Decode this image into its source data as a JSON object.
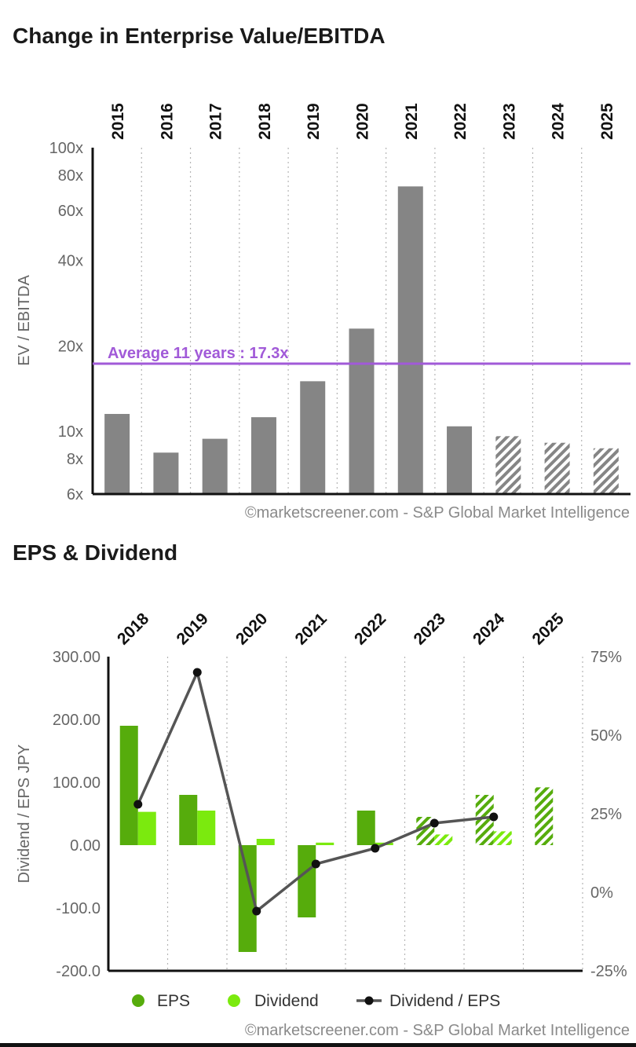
{
  "chart_data": [
    {
      "type": "bar",
      "title": "Change in Enterprise Value/EBITDA",
      "ylabel": "EV / EBITDA",
      "yscale": "log",
      "ylim": [
        6,
        100
      ],
      "y_ticks": [
        {
          "value": 100,
          "label": "100x"
        },
        {
          "value": 80,
          "label": "80x"
        },
        {
          "value": 60,
          "label": "60x"
        },
        {
          "value": 40,
          "label": "40x"
        },
        {
          "value": 20,
          "label": "20x"
        },
        {
          "value": 10,
          "label": "10x"
        },
        {
          "value": 8,
          "label": "8x"
        },
        {
          "value": 6,
          "label": "6x"
        }
      ],
      "categories": [
        "2015",
        "2016",
        "2017",
        "2018",
        "2019",
        "2020",
        "2021",
        "2022",
        "2023",
        "2024",
        "2025"
      ],
      "values": [
        11.5,
        8.4,
        9.4,
        11.2,
        15.0,
        23.0,
        73.0,
        10.4,
        9.6,
        9.1,
        8.7
      ],
      "estimated": [
        false,
        false,
        false,
        false,
        false,
        false,
        false,
        false,
        true,
        true,
        true
      ],
      "average": {
        "value": 17.3,
        "label": "Average 11 years : 17.3x",
        "color": "#a15ad8"
      },
      "bar_color": "#858585",
      "source": "©marketscreener.com - S&P Global Market Intelligence"
    },
    {
      "type": "bar+line",
      "title": "EPS & Dividend",
      "ylabel": "Dividend / EPS JPY",
      "ylim": [
        -200,
        300
      ],
      "y_ticks": [
        {
          "value": 300,
          "label": "300.00"
        },
        {
          "value": 200,
          "label": "200.00"
        },
        {
          "value": 100,
          "label": "100.00"
        },
        {
          "value": 0,
          "label": "0.00"
        },
        {
          "value": -100,
          "label": "-100.0"
        },
        {
          "value": -200,
          "label": "-200.0"
        }
      ],
      "y2lim": [
        -25,
        75
      ],
      "y2_ticks": [
        {
          "value": 75,
          "label": "75%"
        },
        {
          "value": 50,
          "label": "50%"
        },
        {
          "value": 25,
          "label": "25%"
        },
        {
          "value": 0,
          "label": "0%"
        },
        {
          "value": -25,
          "label": "-25%"
        }
      ],
      "categories": [
        "2018",
        "2019",
        "2020",
        "2021",
        "2022",
        "2023",
        "2024",
        "2025"
      ],
      "series": [
        {
          "name": "EPS",
          "color": "#56ac0c",
          "values": [
            190,
            80,
            -170,
            -115,
            55,
            45,
            80,
            92
          ],
          "estimated": [
            false,
            false,
            false,
            false,
            false,
            true,
            true,
            true
          ]
        },
        {
          "name": "Dividend",
          "color": "#7bea0e",
          "values": [
            53,
            55,
            10,
            4,
            4,
            17,
            22,
            null
          ],
          "estimated": [
            false,
            false,
            false,
            false,
            false,
            true,
            true,
            true
          ]
        },
        {
          "name": "Dividend / EPS",
          "color": "#555555",
          "axis": "right",
          "values": [
            28,
            70,
            -6,
            9,
            14,
            22,
            24,
            null
          ]
        }
      ],
      "legend": [
        {
          "label": "EPS"
        },
        {
          "label": "Dividend"
        },
        {
          "label": "Dividend / EPS"
        }
      ],
      "source": "©marketscreener.com - S&P Global Market Intelligence"
    }
  ]
}
